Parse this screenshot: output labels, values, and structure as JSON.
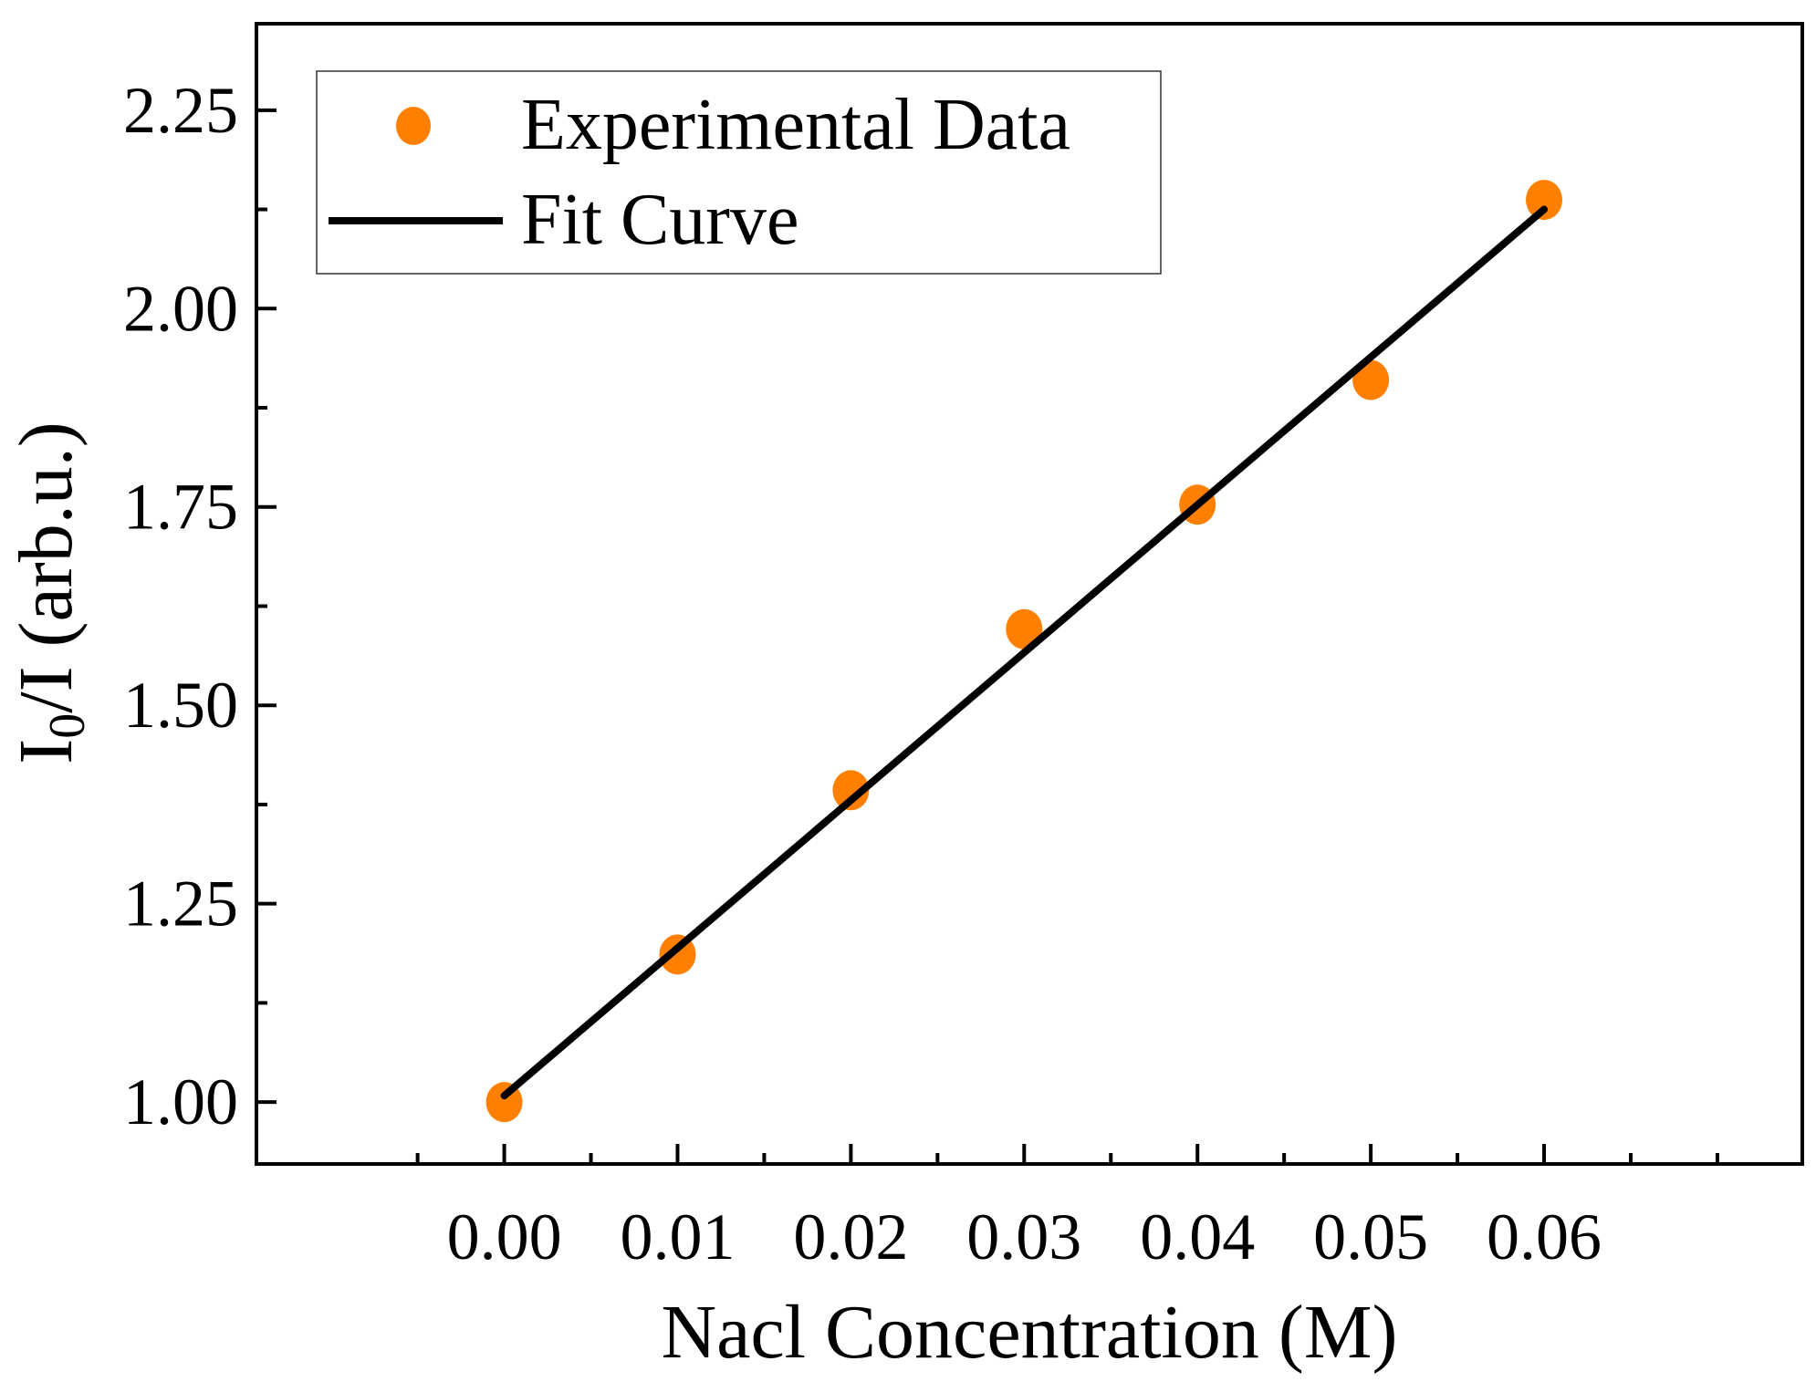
{
  "chart_data": {
    "type": "scatter",
    "title": "",
    "xlabel": "Nacl Concentration (M)",
    "ylabel_main": "I",
    "ylabel_sub": "0",
    "ylabel_rest": "/I (arb.u.)",
    "xlim": [
      -0.0143,
      0.0749
    ],
    "ylim": [
      0.922,
      2.359
    ],
    "xticks": [
      0.0,
      0.01,
      0.02,
      0.03,
      0.04,
      0.05,
      0.06
    ],
    "xtick_labels": [
      "0.00",
      "0.01",
      "0.02",
      "0.03",
      "0.04",
      "0.05",
      "0.06"
    ],
    "yticks": [
      1.0,
      1.25,
      1.5,
      1.75,
      2.0,
      2.25
    ],
    "ytick_labels": [
      "1.00",
      "1.25",
      "1.50",
      "1.75",
      "2.00",
      "2.25"
    ],
    "grid": false,
    "legend_placement": "top-left",
    "series": [
      {
        "name": "Experimental Data",
        "kind": "scatter",
        "color": "#FF8000",
        "x": [
          0.0,
          0.01,
          0.02,
          0.03,
          0.04,
          0.05,
          0.06
        ],
        "y": [
          1.0,
          1.186,
          1.393,
          1.596,
          1.753,
          1.91,
          2.137
        ]
      },
      {
        "name": "Fit Curve",
        "kind": "line",
        "color": "#000000",
        "x": [
          0.0,
          0.06
        ],
        "y": [
          1.008,
          2.125
        ]
      }
    ]
  }
}
